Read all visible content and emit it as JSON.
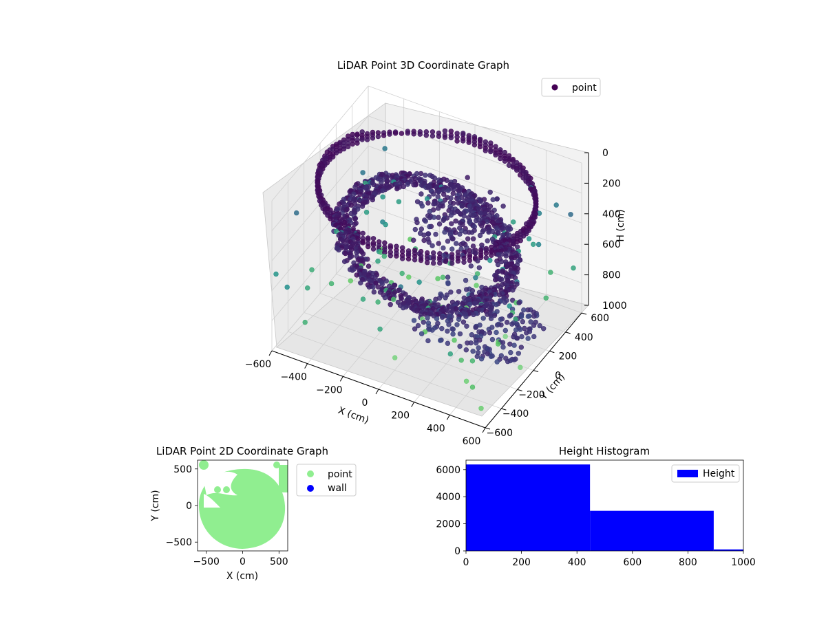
{
  "colors": {
    "viridis_dark": "#440154",
    "mid_blue": "#3b528b",
    "teal": "#21918c",
    "mint": "#5ec962",
    "wall": "#0000ff",
    "point2d": "#90ee90",
    "hist_bar": "#0000ff",
    "pane": "#f2f2f2",
    "grid": "#d0d0d0"
  },
  "chart_data": [
    {
      "type": "scatter3d",
      "title": "LiDAR Point 3D Coordinate Graph",
      "xlabel": "X (cm)",
      "ylabel": "Y (cm)",
      "zlabel": "H (cm)",
      "xlim": [
        -600,
        600
      ],
      "ylim": [
        -600,
        600
      ],
      "zlim": [
        1000,
        0
      ],
      "xticks": [
        -600,
        -400,
        -200,
        0,
        200,
        400,
        600
      ],
      "yticks": [
        -600,
        -400,
        -200,
        0,
        200,
        400,
        600
      ],
      "zticks": [
        0,
        200,
        400,
        600,
        800,
        1000
      ],
      "legend": {
        "position": "top-right",
        "entries": [
          "point"
        ]
      },
      "grid": true,
      "colormap": "viridis",
      "structure": {
        "ring_top": {
          "radius": 560,
          "h_top": 40,
          "h_bottom": 100
        },
        "bowl": {
          "radius": 480,
          "h_min": 280,
          "h_max": 520
        },
        "lower_layer": {
          "x_range": [
            0,
            600
          ],
          "y_range": [
            -300,
            250
          ],
          "h": 760
        }
      }
    },
    {
      "type": "scatter",
      "title": "LiDAR Point 2D Coordinate Graph",
      "xlabel": "X (cm)",
      "ylabel": "Y (cm)",
      "xlim": [
        -620,
        620
      ],
      "ylim": [
        -620,
        620
      ],
      "xticks": [
        -500,
        0,
        500
      ],
      "yticks": [
        -500,
        0,
        500
      ],
      "legend": {
        "position": "outside-right",
        "entries": [
          "point",
          "wall"
        ]
      },
      "series": [
        {
          "name": "point",
          "shape": "disk",
          "center": [
            0,
            0
          ],
          "radius": 560
        },
        {
          "name": "wall",
          "points": []
        }
      ]
    },
    {
      "type": "bar",
      "title": "Height Histogram",
      "xlabel": "",
      "ylabel": "",
      "xlim": [
        0,
        1000
      ],
      "ylim": [
        0,
        6700
      ],
      "xticks": [
        0,
        200,
        400,
        600,
        800,
        1000
      ],
      "yticks": [
        0,
        2000,
        4000,
        6000
      ],
      "legend": {
        "position": "top-right",
        "entries": [
          "Height"
        ]
      },
      "series": [
        {
          "name": "Height",
          "bins": [
            0,
            447,
            893,
            1000
          ],
          "values": [
            6380,
            2960,
            110
          ]
        }
      ]
    }
  ]
}
